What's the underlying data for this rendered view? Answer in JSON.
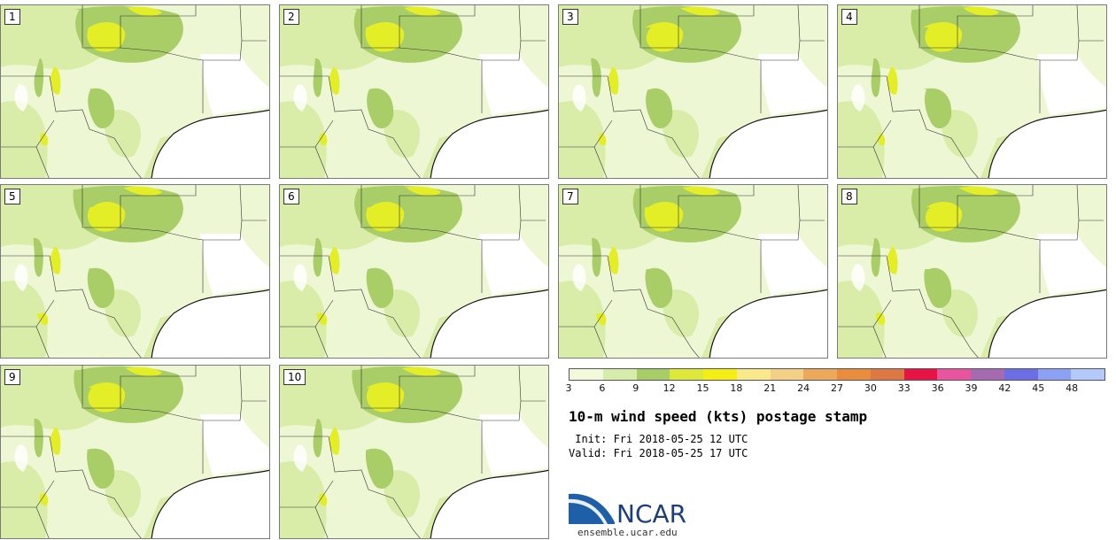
{
  "panels": [
    "1",
    "2",
    "3",
    "4",
    "5",
    "6",
    "7",
    "8",
    "9",
    "10"
  ],
  "colorbar": {
    "colors": [
      "#f3fadc",
      "#d6ecaa",
      "#a8cc66",
      "#dde83a",
      "#f5ee14",
      "#f8ea8a",
      "#f4cf86",
      "#eda859",
      "#e98c3e",
      "#de7843",
      "#e91245",
      "#e8549e",
      "#a56ab0",
      "#6d6de6",
      "#8ca0f4",
      "#b3c8fb"
    ],
    "ticks": [
      "3",
      "6",
      "9",
      "12",
      "15",
      "18",
      "21",
      "24",
      "27",
      "30",
      "33",
      "36",
      "39",
      "42",
      "45",
      "48"
    ]
  },
  "title": "10-m wind speed (kts) postage stamp",
  "init": " Init: Fri 2018-05-25 12 UTC",
  "valid": "Valid: Fri 2018-05-25 17 UTC",
  "logo": {
    "text": "NCAR",
    "url": "ensemble.ucar.edu",
    "colors": {
      "blue": "#1f5fa8",
      "navy": "#1b3f7a"
    }
  },
  "map_colors": {
    "land": "#eef7d4",
    "light": "#d9eda9",
    "mid": "#a9cd67",
    "high": "#e4ee26",
    "calm": "#ffffff",
    "water": "#ffffff"
  }
}
